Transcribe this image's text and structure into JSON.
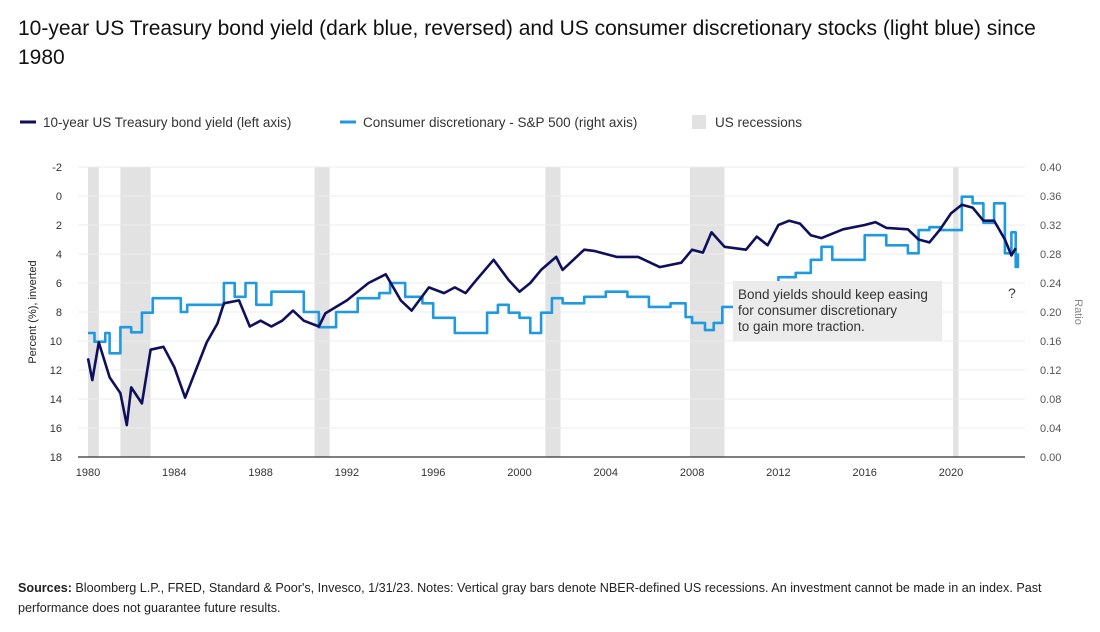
{
  "title": "10-year US Treasury bond yield (dark blue, reversed) and US consumer discretionary stocks (light blue) since 1980",
  "sources": {
    "label": "Sources:",
    "text": " Bloomberg L.P., FRED, Standard & Poor's, Invesco, 1/31/23. Notes: Vertical gray bars denote NBER-defined US recessions. An investment cannot be made in an index. Past performance does not guarantee future results."
  },
  "chart_data": {
    "type": "line",
    "colors": {
      "yield": "#0f0f5c",
      "ratio": "#1f9ae0",
      "recession": "#e2e2e2"
    },
    "legend_placement": "top-left",
    "grid": true,
    "legend": [
      {
        "label": "10-year US Treasury bond yield (left axis)",
        "kind": "line",
        "color": "#0f0f5c"
      },
      {
        "label": "Consumer discretionary - S&P 500 (right axis)",
        "kind": "line",
        "color": "#1f9ae0"
      },
      {
        "label": "US recessions",
        "kind": "box",
        "color": "#e2e2e2"
      }
    ],
    "x_ticks": [
      "1980",
      "1984",
      "1988",
      "1992",
      "1996",
      "2000",
      "2004",
      "2008",
      "2012",
      "2016",
      "2020"
    ],
    "x_range": [
      1979.5,
      2023.4
    ],
    "left_axis": {
      "label": "Percent (%), inverted",
      "range": [
        -2,
        18
      ],
      "inverted": true,
      "ticks": [
        "-2",
        "0",
        "2",
        "4",
        "6",
        "8",
        "10",
        "12",
        "14",
        "16",
        "18"
      ]
    },
    "right_axis": {
      "label": "Ratio",
      "range": [
        0,
        0.4
      ],
      "ticks": [
        "0.40",
        "0.36",
        "0.32",
        "0.28",
        "0.24",
        "0.20",
        "0.16",
        "0.12",
        "0.08",
        "0.04",
        "0.00"
      ]
    },
    "recessions": [
      [
        1980.0,
        1980.5
      ],
      [
        1981.5,
        1982.9
      ],
      [
        1990.5,
        1991.2
      ],
      [
        2001.2,
        2001.9
      ],
      [
        2007.9,
        2009.5
      ],
      [
        2020.1,
        2020.35
      ]
    ],
    "annotation": {
      "lines": [
        "Bond yields should keep easing",
        "for consumer discretionary",
        "to gain more traction."
      ],
      "marker": "?"
    },
    "series": [
      {
        "name": "10-year US Treasury bond yield (left axis)",
        "axis": "left",
        "x": [
          1980.0,
          1980.2,
          1980.5,
          1981.0,
          1981.5,
          1981.8,
          1982.0,
          1982.5,
          1982.9,
          1983.5,
          1984.0,
          1984.5,
          1985.0,
          1985.5,
          1986.0,
          1986.3,
          1987.0,
          1987.5,
          1988.0,
          1988.5,
          1989.0,
          1989.5,
          1990.0,
          1990.7,
          1991.0,
          1992.0,
          1993.0,
          1993.8,
          1994.5,
          1995.0,
          1995.8,
          1996.5,
          1997.0,
          1997.5,
          1998.0,
          1998.8,
          1999.5,
          2000.0,
          2000.5,
          2001.0,
          2001.7,
          2002.0,
          2003.0,
          2003.5,
          2004.5,
          2005.5,
          2006.5,
          2007.5,
          2008.0,
          2008.5,
          2008.9,
          2009.5,
          2010.5,
          2011.0,
          2011.5,
          2012.0,
          2012.5,
          2013.0,
          2013.5,
          2014.0,
          2015.0,
          2016.0,
          2016.5,
          2017.0,
          2018.0,
          2018.5,
          2019.0,
          2019.5,
          2020.0,
          2020.5,
          2021.0,
          2021.5,
          2022.0,
          2022.5,
          2022.8,
          2023.0
        ],
        "y": [
          11.2,
          12.7,
          10.1,
          12.5,
          13.6,
          15.8,
          13.2,
          14.3,
          10.6,
          10.4,
          11.8,
          13.9,
          12.0,
          10.1,
          8.8,
          7.4,
          7.2,
          9.0,
          8.6,
          9.0,
          8.6,
          7.9,
          8.6,
          9.0,
          8.1,
          7.2,
          6.0,
          5.4,
          7.2,
          7.9,
          6.3,
          6.7,
          6.3,
          6.7,
          5.8,
          4.4,
          5.8,
          6.6,
          6.0,
          5.1,
          4.2,
          5.1,
          3.7,
          3.8,
          4.2,
          4.2,
          4.9,
          4.6,
          3.7,
          3.9,
          2.5,
          3.5,
          3.7,
          2.8,
          3.4,
          2.0,
          1.7,
          1.9,
          2.7,
          2.9,
          2.3,
          2.0,
          1.8,
          2.2,
          2.3,
          3.0,
          3.2,
          2.3,
          1.2,
          0.6,
          0.8,
          1.7,
          1.7,
          3.0,
          4.1,
          3.6
        ]
      },
      {
        "name": "Consumer discretionary - S&P 500 (right axis)",
        "axis": "right",
        "x": [
          1980.0,
          1980.3,
          1980.8,
          1981.0,
          1981.5,
          1982.0,
          1982.5,
          1983.0,
          1984.0,
          1984.3,
          1984.6,
          1986.0,
          1986.3,
          1986.8,
          1987.3,
          1987.8,
          1988.5,
          1989.5,
          1990.0,
          1990.7,
          1991.5,
          1992.5,
          1993.5,
          1994.0,
          1994.7,
          1995.5,
          1996.0,
          1997.0,
          1998.0,
          1998.5,
          1999.0,
          1999.5,
          2000.0,
          2000.5,
          2001.0,
          2001.5,
          2002.0,
          2003.0,
          2004.0,
          2005.0,
          2006.0,
          2007.0,
          2007.7,
          2008.0,
          2008.6,
          2009.0,
          2009.4,
          2010.0,
          2010.5,
          2011.3,
          2012.0,
          2012.8,
          2013.5,
          2014.0,
          2014.5,
          2015.4,
          2016.0,
          2017.0,
          2017.7,
          2018.0,
          2018.5,
          2019.0,
          2019.5,
          2020.0,
          2020.5,
          2021.0,
          2021.5,
          2022.0,
          2022.5,
          2022.8,
          2023.0,
          2023.1
        ],
        "y": [
          0.171,
          0.159,
          0.171,
          0.143,
          0.179,
          0.172,
          0.199,
          0.219,
          0.219,
          0.2,
          0.21,
          0.21,
          0.24,
          0.221,
          0.24,
          0.21,
          0.228,
          0.228,
          0.2,
          0.179,
          0.2,
          0.219,
          0.226,
          0.24,
          0.221,
          0.212,
          0.192,
          0.171,
          0.171,
          0.199,
          0.21,
          0.199,
          0.192,
          0.171,
          0.199,
          0.219,
          0.212,
          0.221,
          0.228,
          0.221,
          0.207,
          0.212,
          0.193,
          0.185,
          0.175,
          0.185,
          0.207,
          0.207,
          0.226,
          0.237,
          0.248,
          0.254,
          0.272,
          0.29,
          0.272,
          0.272,
          0.306,
          0.292,
          0.292,
          0.281,
          0.313,
          0.317,
          0.313,
          0.313,
          0.359,
          0.35,
          0.323,
          0.35,
          0.281,
          0.31,
          0.262,
          0.281
        ]
      }
    ]
  }
}
